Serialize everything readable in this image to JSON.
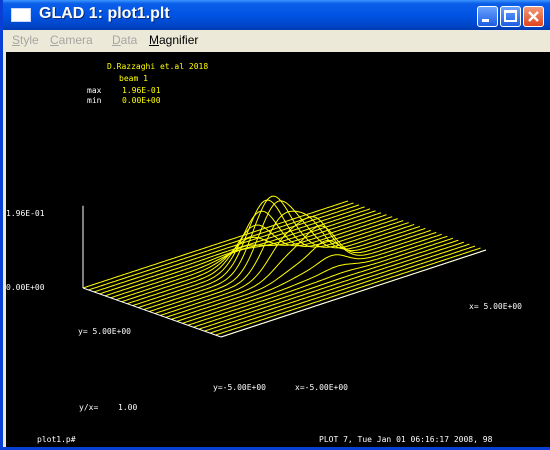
{
  "window": {
    "title": "GLAD 1: plot1.plt"
  },
  "menu": [
    {
      "label": "Style",
      "accel": "S",
      "rest": "tyle",
      "enabled": false
    },
    {
      "label": "Camera",
      "accel": "C",
      "rest": "amera",
      "enabled": false
    },
    {
      "label": "Data",
      "accel": "D",
      "rest": "ata",
      "enabled": false
    },
    {
      "label": "Magnifier",
      "accel": "M",
      "rest": "agnifier",
      "enabled": true
    }
  ],
  "plot": {
    "author": "D.Razzaghi et.al 2018",
    "beam": "beam 1",
    "max_label": "max",
    "max_value": "1.96E-01",
    "min_label": "min",
    "min_value": "0.00E+00",
    "z_top_label": "1.96E-01",
    "z_bottom_label": "0.00E+00",
    "x_max_label": "x= 5.00E+00",
    "y_max_label": "y= 5.00E+00",
    "y_min_label": "y=-5.00E+00",
    "x_min_label": "x=-5.00E+00",
    "ratio_label": "y/x=",
    "ratio_value": "1.00",
    "file_label": "plot1.p#",
    "footer": "PLOT 7, Tue Jan 01 06:16:17 2008, 98"
  },
  "colors": {
    "titlebar": "#0054e3",
    "plot_background": "#000000",
    "mesh": "#ffff00",
    "axes": "#ffffff"
  }
}
